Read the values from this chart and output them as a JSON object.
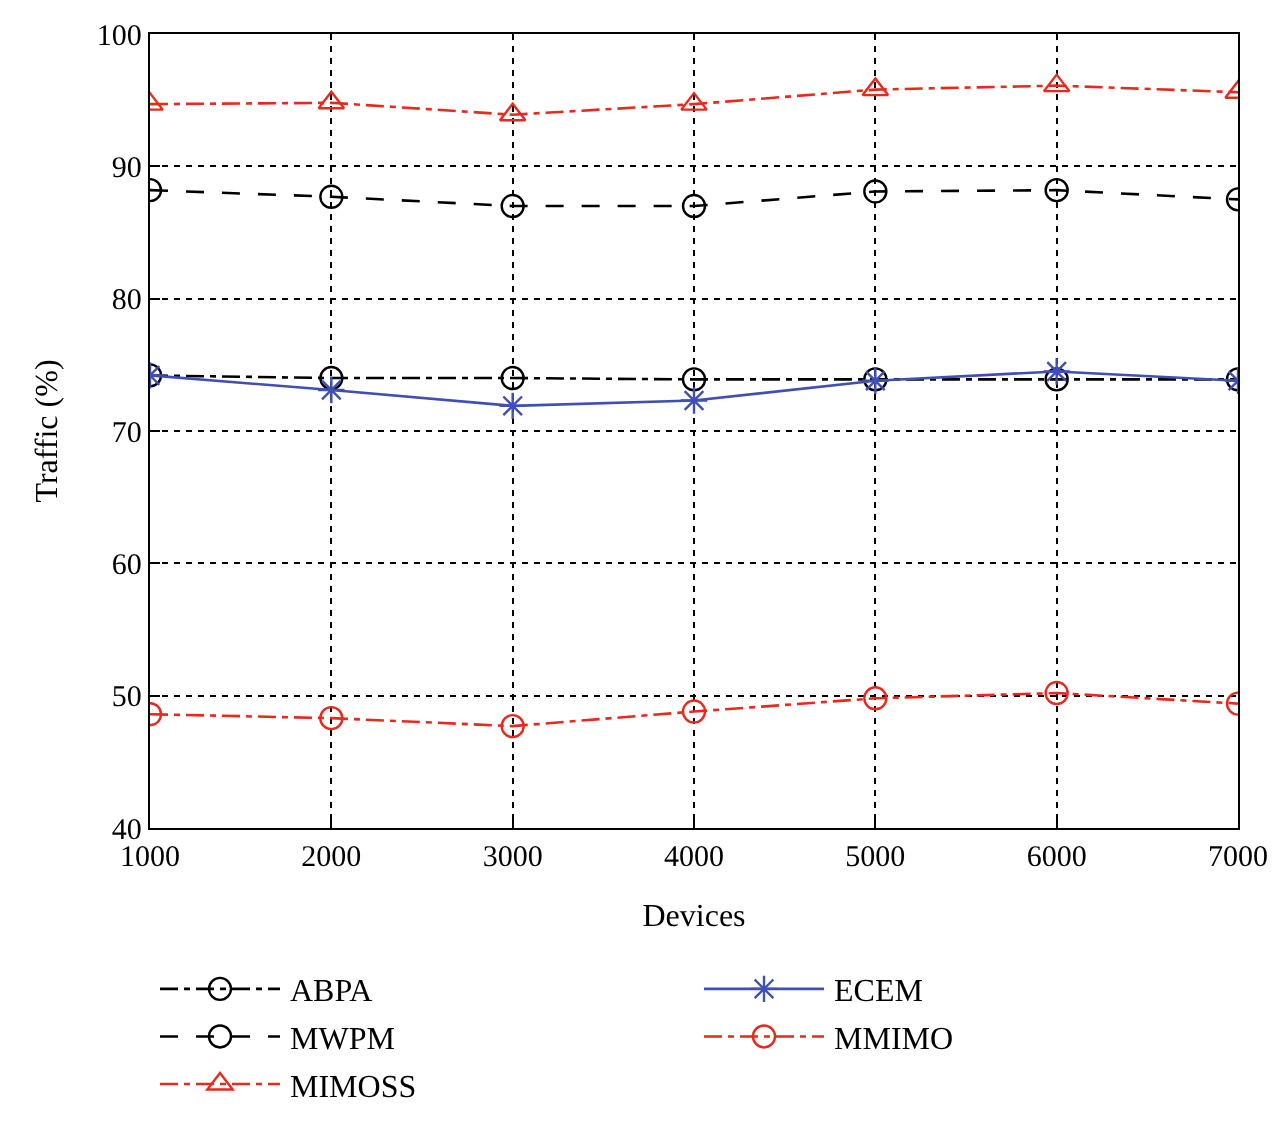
{
  "chart_data": {
    "type": "line",
    "xlabel": "Devices",
    "ylabel": "Traffic (%)",
    "x": [
      1000,
      2000,
      3000,
      4000,
      5000,
      6000,
      7000
    ],
    "xlim": [
      1000,
      7000
    ],
    "xticks": [
      1000,
      2000,
      3000,
      4000,
      5000,
      6000,
      7000
    ],
    "ylim": [
      40,
      100
    ],
    "yticks": [
      40,
      50,
      60,
      70,
      80,
      90,
      100
    ],
    "grid": true,
    "legend": "bottom",
    "series": [
      {
        "name": "ABPA",
        "color": "#000000",
        "marker": "circle",
        "line_style": "dashdot",
        "values": [
          74.2,
          74.0,
          74.0,
          73.9,
          73.9,
          73.9,
          73.9
        ]
      },
      {
        "name": "MWPM",
        "color": "#000000",
        "marker": "circle",
        "line_style": "dashed",
        "values": [
          88.2,
          87.7,
          87.0,
          87.0,
          88.1,
          88.2,
          87.5
        ]
      },
      {
        "name": "MIMOSS",
        "color": "#e8291c",
        "marker": "triangle",
        "line_style": "dashdot",
        "values": [
          94.7,
          94.8,
          93.9,
          94.7,
          95.8,
          96.1,
          95.6
        ]
      },
      {
        "name": "ECEM",
        "color": "#3f4fb5",
        "marker": "cross",
        "line_style": "solid",
        "values": [
          74.2,
          73.1,
          71.9,
          72.3,
          73.8,
          74.5,
          73.8
        ]
      },
      {
        "name": "MMIMO",
        "color": "#e8291c",
        "marker": "circle",
        "line_style": "dashdot",
        "values": [
          48.6,
          48.3,
          47.7,
          48.8,
          49.8,
          50.2,
          49.4
        ]
      }
    ]
  }
}
